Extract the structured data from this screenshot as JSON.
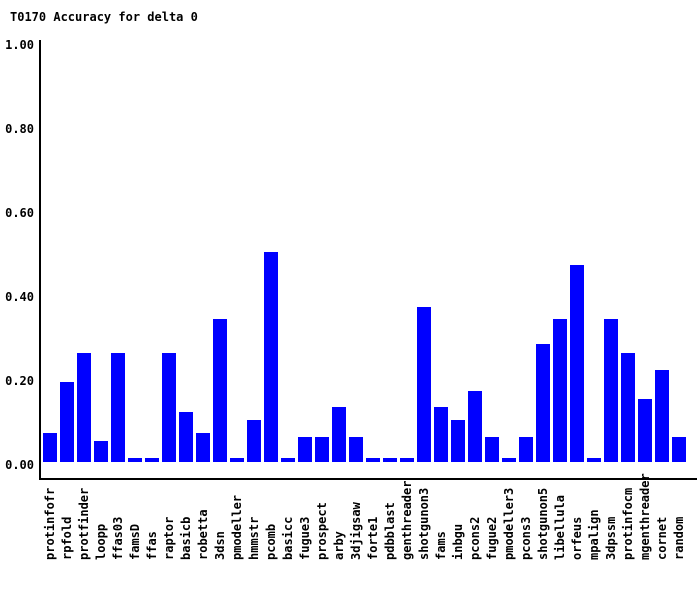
{
  "title": "T0170 Accuracy for delta 0",
  "chart_data": {
    "type": "bar",
    "title": "T0170 Accuracy for delta 0",
    "xlabel": "",
    "ylabel": "",
    "ylim": [
      0,
      1
    ],
    "yticks": [
      "0.00",
      "0.20",
      "0.40",
      "0.60",
      "0.80",
      "1.00"
    ],
    "grid": "off",
    "legend": "none",
    "bar_color": "#0000ff",
    "axis_color": "#000000",
    "text_color": "#000000",
    "background_color": "#ffffff",
    "categories": [
      "protinfofr",
      "rpfold",
      "protfinder",
      "loopp",
      "ffas03",
      "famsD",
      "ffas",
      "raptor",
      "basicb",
      "robetta",
      "3dsn",
      "pmodeller",
      "hmmstr",
      "pcomb",
      "basicc",
      "fugue3",
      "prospect",
      "arby",
      "3djigsaw",
      "forte1",
      "pdbblast",
      "genthreader",
      "shotgunon3",
      "fams",
      "inbgu",
      "pcons2",
      "fugue2",
      "pmodeller3",
      "pcons3",
      "shotgunon5",
      "libellula",
      "orfeus",
      "mpalign",
      "3dpssm",
      "protinfocm",
      "mgenthreader",
      "cornet",
      "random"
    ],
    "values": [
      0.07,
      0.19,
      0.26,
      0.05,
      0.26,
      0.01,
      0.01,
      0.26,
      0.12,
      0.07,
      0.34,
      0.01,
      0.1,
      0.5,
      0.01,
      0.06,
      0.06,
      0.13,
      0.06,
      0.01,
      0.01,
      0.01,
      0.37,
      0.13,
      0.1,
      0.17,
      0.06,
      0.01,
      0.06,
      0.28,
      0.34,
      0.47,
      0.01,
      0.34,
      0.26,
      0.15,
      0.22,
      0.06
    ]
  }
}
